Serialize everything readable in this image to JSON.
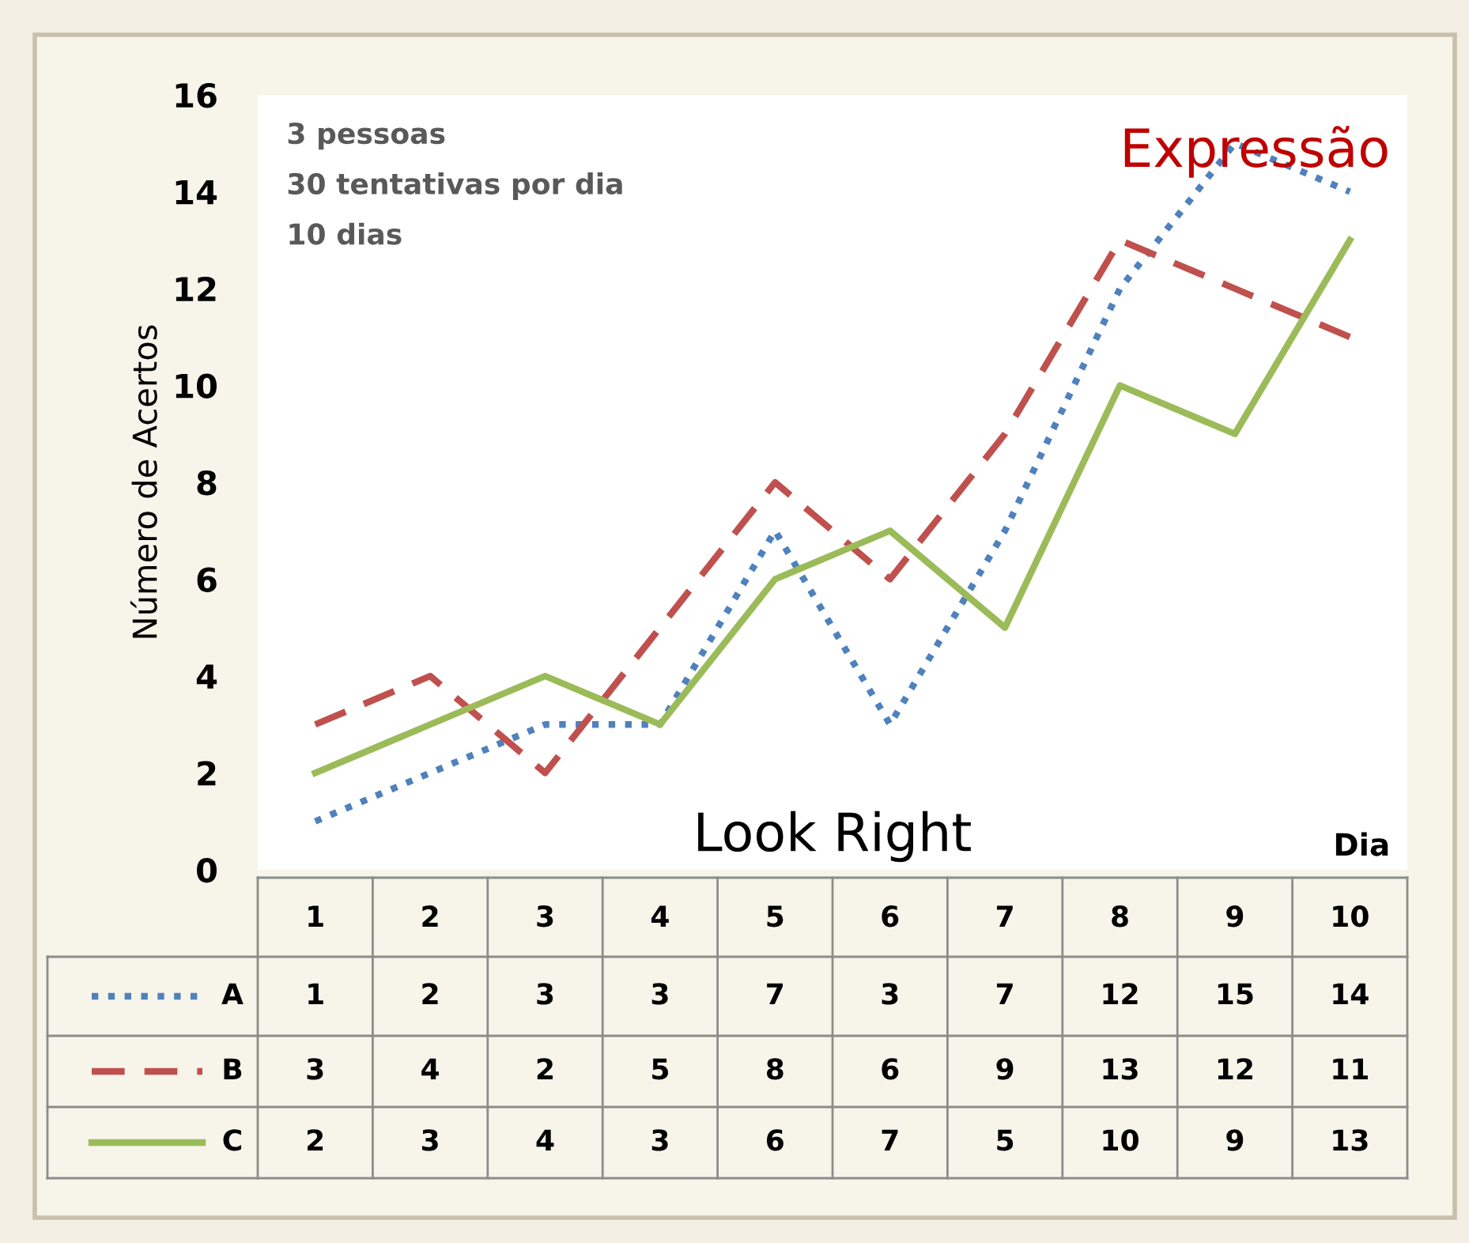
{
  "chart_data": {
    "type": "line",
    "title": "Expressão",
    "subtitle": "Look Right",
    "xlabel": "Dia",
    "ylabel": "Número de Acertos",
    "annotations": [
      "3 pessoas",
      "30 tentativas por dia",
      "10 dias"
    ],
    "categories": [
      "1",
      "2",
      "3",
      "4",
      "5",
      "6",
      "7",
      "8",
      "9",
      "10"
    ],
    "series": [
      {
        "name": "A",
        "color": "#4f81bd",
        "line_style": "dotted",
        "values": [
          1,
          2,
          3,
          3,
          7,
          3,
          7,
          12,
          15,
          14
        ]
      },
      {
        "name": "B",
        "color": "#c0504d",
        "line_style": "dashed",
        "values": [
          3,
          4,
          2,
          5,
          8,
          6,
          9,
          13,
          12,
          11
        ]
      },
      {
        "name": "C",
        "color": "#9bbb59",
        "line_style": "solid",
        "values": [
          2,
          3,
          4,
          3,
          6,
          7,
          5,
          10,
          9,
          13
        ]
      }
    ],
    "ylim": [
      0,
      16
    ],
    "yticks": [
      0,
      2,
      4,
      6,
      8,
      10,
      12,
      14,
      16
    ],
    "grid": false,
    "legend": "bottom",
    "data_labels": true,
    "marker": "none"
  }
}
